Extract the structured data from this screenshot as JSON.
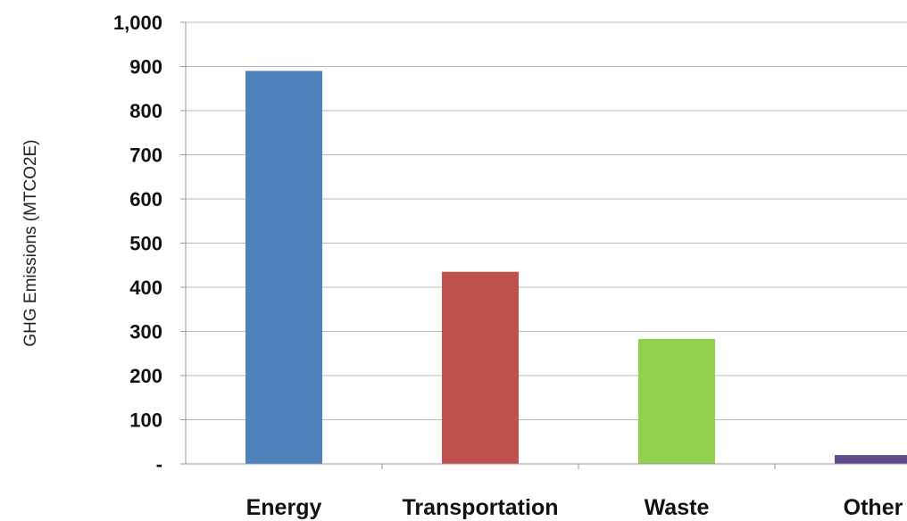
{
  "chart_data": {
    "type": "bar",
    "title": "",
    "xlabel": "",
    "ylabel": "GHG Emissions (MTCO2E)",
    "ylim": [
      0,
      1000
    ],
    "yticks": [
      {
        "value": 0,
        "label": "-"
      },
      {
        "value": 100,
        "label": "100"
      },
      {
        "value": 200,
        "label": "200"
      },
      {
        "value": 300,
        "label": "300"
      },
      {
        "value": 400,
        "label": "400"
      },
      {
        "value": 500,
        "label": "500"
      },
      {
        "value": 600,
        "label": "600"
      },
      {
        "value": 700,
        "label": "700"
      },
      {
        "value": 800,
        "label": "800"
      },
      {
        "value": 900,
        "label": "900"
      },
      {
        "value": 1000,
        "label": "1,000"
      }
    ],
    "categories": [
      "Energy",
      "Transportation",
      "Waste",
      "Other"
    ],
    "values": [
      890,
      435,
      283,
      20
    ],
    "colors": [
      "#4F81BD",
      "#C0504D",
      "#92D050",
      "#5F4B8B"
    ],
    "grid": true,
    "legend": "none"
  }
}
